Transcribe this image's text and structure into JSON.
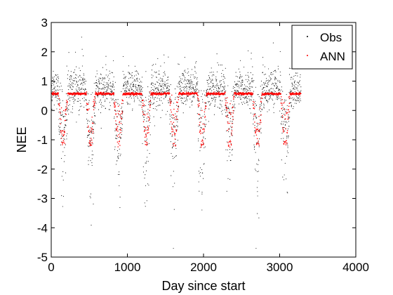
{
  "chart_data": {
    "type": "scatter",
    "xlabel": "Day since start",
    "ylabel": "NEE",
    "xlim": [
      0,
      4000
    ],
    "ylim": [
      -5,
      3
    ],
    "xticks": [
      0,
      1000,
      2000,
      3000,
      4000
    ],
    "xtick_labels": [
      "0",
      "1000",
      "2000",
      "3000",
      "4000"
    ],
    "yticks": [
      -5,
      -4,
      -3,
      -2,
      -1,
      0,
      1,
      2,
      3
    ],
    "ytick_labels": [
      "-5",
      "-4",
      "-3",
      "-2",
      "-1",
      "0",
      "1",
      "2",
      "3"
    ],
    "grid": false,
    "legend_position": "top-right",
    "x_range_of_points": [
      0,
      3280
    ],
    "cycle_length_days": 365,
    "series": [
      {
        "name": "Obs",
        "color": "#000000",
        "marker": "dot",
        "summary": {
          "winter_band": [
            0.2,
            1.5
          ],
          "summer_min_approx": -4.5,
          "max_approx": 2.5
        },
        "sample": [
          [
            10,
            0.6
          ],
          [
            60,
            1.0
          ],
          [
            90,
            0.3
          ],
          [
            140,
            -2.5
          ],
          [
            165,
            -3.9
          ],
          [
            185,
            -1.7
          ],
          [
            210,
            -0.6
          ],
          [
            320,
            0.8
          ],
          [
            400,
            1.5
          ],
          [
            450,
            1.1
          ],
          [
            500,
            -1.3
          ],
          [
            520,
            -3.6
          ],
          [
            560,
            -0.7
          ],
          [
            700,
            0.9
          ],
          [
            760,
            1.4
          ],
          [
            870,
            -2.2
          ],
          [
            890,
            -4.1
          ],
          [
            940,
            -0.8
          ],
          [
            1100,
            0.7
          ],
          [
            1150,
            1.2
          ],
          [
            1230,
            -1.5
          ],
          [
            1260,
            -3.1
          ],
          [
            1320,
            -0.6
          ],
          [
            1480,
            0.9
          ],
          [
            1560,
            1.6
          ],
          [
            1620,
            -1.3
          ],
          [
            1640,
            -4.2
          ],
          [
            1700,
            -0.5
          ],
          [
            1850,
            1.1
          ],
          [
            1900,
            2.0
          ],
          [
            1990,
            -1.8
          ],
          [
            2010,
            -3.9
          ],
          [
            2060,
            -0.7
          ],
          [
            2220,
            1.4
          ],
          [
            2260,
            2.4
          ],
          [
            2350,
            -2.4
          ],
          [
            2380,
            -4.6
          ],
          [
            2440,
            -0.6
          ],
          [
            2580,
            1.7
          ],
          [
            2620,
            2.1
          ],
          [
            2720,
            -1.4
          ],
          [
            2750,
            -3.9
          ],
          [
            2800,
            -0.5
          ],
          [
            2950,
            0.9
          ],
          [
            3000,
            1.6
          ],
          [
            3050,
            -2.6
          ],
          [
            3080,
            -4.2
          ],
          [
            3150,
            -0.3
          ],
          [
            3270,
            0.5
          ]
        ]
      },
      {
        "name": "ANN",
        "color": "#ff0000",
        "marker": "dot",
        "summary": {
          "plateau_value": 0.57,
          "secondary_levels": [
            -0.7,
            -1.1
          ],
          "lowest_approx": -1.25
        },
        "sample": [
          [
            20,
            0.6
          ],
          [
            60,
            0.6
          ],
          [
            100,
            0.5
          ],
          [
            140,
            -0.7
          ],
          [
            160,
            -1.1
          ],
          [
            200,
            -1.15
          ],
          [
            250,
            -0.2
          ],
          [
            330,
            0.6
          ],
          [
            400,
            0.6
          ],
          [
            470,
            0.4
          ],
          [
            510,
            -0.7
          ],
          [
            540,
            -1.1
          ],
          [
            600,
            -0.4
          ],
          [
            700,
            0.6
          ],
          [
            780,
            0.6
          ],
          [
            860,
            -0.7
          ],
          [
            900,
            -1.1
          ],
          [
            950,
            -1.15
          ],
          [
            1100,
            0.6
          ],
          [
            1160,
            0.6
          ],
          [
            1240,
            -0.7
          ],
          [
            1280,
            -1.1
          ],
          [
            1320,
            -0.3
          ],
          [
            1460,
            0.6
          ],
          [
            1560,
            0.6
          ],
          [
            1620,
            -0.7
          ],
          [
            1660,
            -1.1
          ],
          [
            1720,
            -0.5
          ],
          [
            1820,
            0.6
          ],
          [
            1920,
            0.6
          ],
          [
            1980,
            -0.7
          ],
          [
            2020,
            -1.1
          ],
          [
            2080,
            -0.3
          ],
          [
            2200,
            0.6
          ],
          [
            2260,
            0.6
          ],
          [
            2360,
            -0.7
          ],
          [
            2380,
            -1.1
          ],
          [
            2440,
            -0.4
          ],
          [
            2560,
            0.6
          ],
          [
            2640,
            0.6
          ],
          [
            2720,
            -0.7
          ],
          [
            2760,
            -1.1
          ],
          [
            2800,
            -0.3
          ],
          [
            2940,
            0.6
          ],
          [
            3020,
            0.6
          ],
          [
            3080,
            -0.7
          ],
          [
            3120,
            -1.1
          ],
          [
            3180,
            -0.2
          ],
          [
            3270,
            0.6
          ]
        ]
      }
    ]
  }
}
